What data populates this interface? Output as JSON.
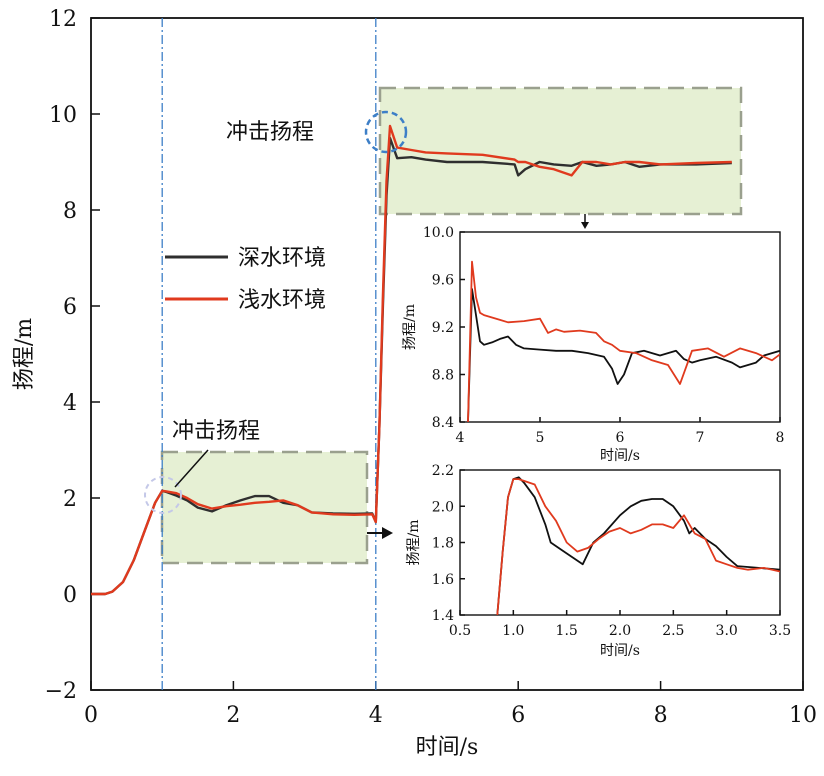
{
  "chart_data": {
    "type": "line",
    "main": {
      "xlabel": "时间/s",
      "ylabel": "扬程/m",
      "xlim": [
        0,
        10
      ],
      "ylim": [
        -2,
        12
      ],
      "xticks": [
        "0",
        "2",
        "4",
        "6",
        "8",
        "10"
      ],
      "yticks": [
        "−2",
        "0",
        "2",
        "4",
        "6",
        "8",
        "10",
        "12"
      ],
      "legend_placement": "center-left",
      "vlines": [
        1.0,
        4.0
      ],
      "annotations": [
        "冲击扬程",
        "冲击扬程"
      ],
      "series": [
        {
          "name": "深水环境",
          "color": "#2f2f2f",
          "x": [
            0,
            0.2,
            0.3,
            0.45,
            0.6,
            0.75,
            0.9,
            1.0,
            1.05,
            1.2,
            1.35,
            1.5,
            1.7,
            1.9,
            2.1,
            2.3,
            2.5,
            2.7,
            2.9,
            3.1,
            3.4,
            3.7,
            3.95,
            4.0,
            4.05,
            4.1,
            4.15,
            4.2,
            4.3,
            4.5,
            4.7,
            5.0,
            5.5,
            5.95,
            6.0,
            6.1,
            6.3,
            6.5,
            6.75,
            6.9,
            7.1,
            7.3,
            7.5,
            7.7,
            8.0,
            8.5,
            9.0
          ],
          "y": [
            0,
            0,
            0.05,
            0.25,
            0.7,
            1.3,
            1.9,
            2.15,
            2.13,
            2.05,
            1.95,
            1.8,
            1.72,
            1.85,
            1.95,
            2.04,
            2.04,
            1.9,
            1.85,
            1.7,
            1.68,
            1.67,
            1.68,
            1.5,
            3.5,
            6.0,
            8.3,
            9.5,
            9.08,
            9.1,
            9.05,
            9.0,
            9.0,
            8.95,
            8.72,
            8.85,
            9.0,
            8.95,
            8.92,
            9.0,
            8.92,
            8.95,
            9.0,
            8.9,
            8.95,
            8.95,
            8.98
          ]
        },
        {
          "name": "浅水环境",
          "color": "#e03a1e",
          "x": [
            0,
            0.2,
            0.3,
            0.45,
            0.6,
            0.75,
            0.9,
            1.0,
            1.05,
            1.2,
            1.35,
            1.5,
            1.7,
            1.9,
            2.1,
            2.3,
            2.5,
            2.7,
            2.9,
            3.1,
            3.4,
            3.7,
            3.95,
            4.0,
            4.05,
            4.1,
            4.15,
            4.2,
            4.3,
            4.5,
            4.7,
            5.0,
            5.5,
            5.95,
            6.0,
            6.1,
            6.3,
            6.5,
            6.75,
            6.9,
            7.1,
            7.3,
            7.5,
            7.7,
            8.0,
            8.5,
            9.0
          ],
          "y": [
            0,
            0,
            0.05,
            0.25,
            0.7,
            1.3,
            1.9,
            2.15,
            2.14,
            2.1,
            2.0,
            1.87,
            1.78,
            1.83,
            1.86,
            1.9,
            1.92,
            1.95,
            1.85,
            1.7,
            1.66,
            1.65,
            1.66,
            1.5,
            3.5,
            6.2,
            8.6,
            9.75,
            9.3,
            9.25,
            9.2,
            9.18,
            9.15,
            9.05,
            9.0,
            9.0,
            8.9,
            8.85,
            8.72,
            9.0,
            9.0,
            8.95,
            9.0,
            9.0,
            8.95,
            8.98,
            9.0
          ]
        }
      ]
    },
    "inset_upper": {
      "xlabel": "时间/s",
      "ylabel": "扬程/m",
      "xlim": [
        4,
        8
      ],
      "ylim": [
        8.4,
        10.0
      ],
      "xticks": [
        "4",
        "5",
        "6",
        "7",
        "8"
      ],
      "yticks": [
        "8.4",
        "8.8",
        "9.2",
        "9.6",
        "10.0"
      ],
      "series": [
        {
          "name": "深水环境",
          "color": "#111111",
          "x": [
            4.1,
            4.15,
            4.2,
            4.25,
            4.3,
            4.4,
            4.5,
            4.6,
            4.7,
            4.8,
            5.0,
            5.2,
            5.4,
            5.6,
            5.8,
            5.9,
            5.97,
            6.05,
            6.15,
            6.3,
            6.5,
            6.7,
            6.8,
            6.9,
            7.0,
            7.2,
            7.4,
            7.5,
            7.7,
            7.8,
            8.0
          ],
          "y": [
            8.4,
            9.52,
            9.3,
            9.08,
            9.05,
            9.07,
            9.1,
            9.12,
            9.05,
            9.02,
            9.01,
            9.0,
            9.0,
            8.98,
            8.95,
            8.85,
            8.72,
            8.8,
            8.98,
            9.0,
            8.96,
            9.0,
            8.93,
            8.9,
            8.92,
            8.95,
            8.9,
            8.86,
            8.9,
            8.96,
            9.0
          ]
        },
        {
          "name": "浅水环境",
          "color": "#e03a1e",
          "x": [
            4.1,
            4.15,
            4.2,
            4.25,
            4.3,
            4.4,
            4.5,
            4.6,
            4.8,
            5.0,
            5.1,
            5.2,
            5.3,
            5.5,
            5.7,
            5.8,
            5.9,
            6.0,
            6.2,
            6.4,
            6.6,
            6.75,
            6.9,
            7.1,
            7.3,
            7.5,
            7.7,
            7.9,
            8.0
          ],
          "y": [
            8.4,
            9.75,
            9.45,
            9.32,
            9.3,
            9.28,
            9.26,
            9.24,
            9.25,
            9.27,
            9.15,
            9.18,
            9.16,
            9.17,
            9.15,
            9.08,
            9.05,
            9.0,
            8.98,
            8.92,
            8.88,
            8.72,
            9.0,
            9.02,
            8.95,
            9.02,
            8.98,
            8.92,
            8.97
          ]
        }
      ]
    },
    "inset_lower": {
      "xlabel": "时间/s",
      "ylabel": "扬程/m",
      "xlim": [
        0.5,
        3.5
      ],
      "ylim": [
        1.4,
        2.2
      ],
      "xticks": [
        "0.5",
        "1.0",
        "1.5",
        "2.0",
        "2.5",
        "3.0",
        "3.5"
      ],
      "yticks": [
        "1.4",
        "1.6",
        "1.8",
        "2.0",
        "2.2"
      ],
      "series": [
        {
          "name": "深水环境",
          "color": "#111111",
          "x": [
            0.85,
            0.9,
            0.95,
            1.0,
            1.05,
            1.1,
            1.2,
            1.3,
            1.35,
            1.45,
            1.55,
            1.65,
            1.75,
            1.85,
            2.0,
            2.1,
            2.2,
            2.3,
            2.4,
            2.5,
            2.6,
            2.65,
            2.7,
            2.8,
            2.9,
            3.0,
            3.1,
            3.3,
            3.5
          ],
          "y": [
            1.4,
            1.75,
            2.05,
            2.15,
            2.16,
            2.13,
            2.05,
            1.9,
            1.8,
            1.76,
            1.72,
            1.68,
            1.8,
            1.85,
            1.95,
            2.0,
            2.03,
            2.04,
            2.04,
            2.0,
            1.92,
            1.85,
            1.88,
            1.82,
            1.78,
            1.72,
            1.67,
            1.66,
            1.65
          ]
        },
        {
          "name": "浅水环境",
          "color": "#e03a1e",
          "x": [
            0.85,
            0.9,
            0.95,
            1.0,
            1.05,
            1.1,
            1.2,
            1.3,
            1.4,
            1.5,
            1.6,
            1.7,
            1.8,
            1.9,
            2.0,
            2.1,
            2.2,
            2.3,
            2.4,
            2.5,
            2.6,
            2.7,
            2.8,
            2.9,
            3.0,
            3.1,
            3.2,
            3.35,
            3.5
          ],
          "y": [
            1.4,
            1.75,
            2.05,
            2.15,
            2.15,
            2.14,
            2.12,
            2.0,
            1.92,
            1.8,
            1.75,
            1.77,
            1.82,
            1.86,
            1.88,
            1.85,
            1.87,
            1.9,
            1.9,
            1.88,
            1.95,
            1.85,
            1.82,
            1.7,
            1.68,
            1.66,
            1.65,
            1.66,
            1.64
          ]
        }
      ]
    }
  }
}
